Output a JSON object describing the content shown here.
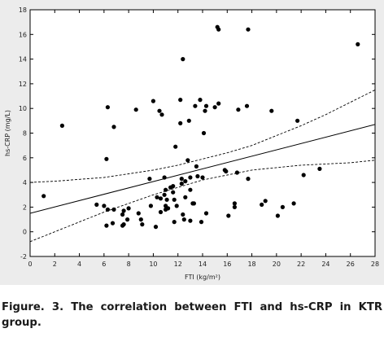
{
  "caption": "Figure. 3. The correlation between FTI  and hs-CRP in KTR group.",
  "chart_data": {
    "type": "scatter",
    "title": "",
    "xlabel": "FTI (kg/m²)",
    "ylabel": "hs-CRP (mg/L)",
    "xlim": [
      0,
      28
    ],
    "ylim": [
      -2,
      18
    ],
    "xticks": [
      0,
      2,
      4,
      6,
      8,
      10,
      12,
      14,
      16,
      18,
      20,
      22,
      24,
      26,
      28
    ],
    "yticks": [
      -2,
      0,
      2,
      4,
      6,
      8,
      10,
      12,
      14,
      16,
      18
    ],
    "grid": false,
    "legend": "none",
    "regression_line": {
      "x": [
        0,
        28
      ],
      "y": [
        1.5,
        8.7
      ]
    },
    "confidence_band": {
      "x": [
        0,
        2,
        4,
        6,
        8,
        10,
        12,
        14,
        16,
        18,
        20,
        22,
        24,
        26,
        28
      ],
      "upper": [
        4.0,
        4.1,
        4.25,
        4.4,
        4.7,
        5.0,
        5.4,
        5.9,
        6.4,
        7.0,
        7.8,
        8.6,
        9.5,
        10.5,
        11.5
      ],
      "lower": [
        -0.8,
        0.0,
        0.8,
        1.6,
        2.3,
        3.0,
        3.6,
        4.2,
        4.6,
        5.0,
        5.2,
        5.4,
        5.5,
        5.6,
        5.8
      ]
    },
    "points": [
      {
        "x": 1.1,
        "y": 2.9
      },
      {
        "x": 2.6,
        "y": 8.6
      },
      {
        "x": 5.4,
        "y": 2.2
      },
      {
        "x": 6.0,
        "y": 2.1
      },
      {
        "x": 6.2,
        "y": 5.9
      },
      {
        "x": 6.3,
        "y": 10.1
      },
      {
        "x": 6.3,
        "y": 1.8
      },
      {
        "x": 6.2,
        "y": 0.5
      },
      {
        "x": 6.8,
        "y": 8.5
      },
      {
        "x": 6.8,
        "y": 1.8
      },
      {
        "x": 6.7,
        "y": 0.7
      },
      {
        "x": 7.6,
        "y": 1.7
      },
      {
        "x": 7.5,
        "y": 1.4
      },
      {
        "x": 7.6,
        "y": 0.6
      },
      {
        "x": 7.5,
        "y": 0.5
      },
      {
        "x": 8.0,
        "y": 1.9
      },
      {
        "x": 7.9,
        "y": 1.0
      },
      {
        "x": 8.6,
        "y": 9.9
      },
      {
        "x": 8.8,
        "y": 1.5
      },
      {
        "x": 9.0,
        "y": 1.0
      },
      {
        "x": 9.1,
        "y": 0.6
      },
      {
        "x": 9.7,
        "y": 4.3
      },
      {
        "x": 9.8,
        "y": 2.1
      },
      {
        "x": 10.0,
        "y": 10.6
      },
      {
        "x": 10.3,
        "y": 2.8
      },
      {
        "x": 10.2,
        "y": 0.4
      },
      {
        "x": 10.5,
        "y": 9.8
      },
      {
        "x": 10.7,
        "y": 9.5
      },
      {
        "x": 10.6,
        "y": 2.7
      },
      {
        "x": 10.6,
        "y": 1.6
      },
      {
        "x": 10.9,
        "y": 4.4
      },
      {
        "x": 11.0,
        "y": 3.4
      },
      {
        "x": 10.9,
        "y": 3.0
      },
      {
        "x": 11.0,
        "y": 2.1
      },
      {
        "x": 11.0,
        "y": 1.8
      },
      {
        "x": 11.1,
        "y": 2.6
      },
      {
        "x": 11.2,
        "y": 1.9
      },
      {
        "x": 11.4,
        "y": 3.6
      },
      {
        "x": 11.6,
        "y": 3.7
      },
      {
        "x": 11.6,
        "y": 3.2
      },
      {
        "x": 11.7,
        "y": 2.6
      },
      {
        "x": 11.7,
        "y": 0.8
      },
      {
        "x": 11.8,
        "y": 6.9
      },
      {
        "x": 11.9,
        "y": 2.1
      },
      {
        "x": 12.2,
        "y": 10.7
      },
      {
        "x": 12.2,
        "y": 8.8
      },
      {
        "x": 12.3,
        "y": 4.3
      },
      {
        "x": 12.3,
        "y": 3.9
      },
      {
        "x": 12.4,
        "y": 14.0
      },
      {
        "x": 12.4,
        "y": 1.4
      },
      {
        "x": 12.5,
        "y": 1.0
      },
      {
        "x": 12.6,
        "y": 2.8
      },
      {
        "x": 12.6,
        "y": 4.1
      },
      {
        "x": 12.8,
        "y": 5.8
      },
      {
        "x": 12.9,
        "y": 9.0
      },
      {
        "x": 13.0,
        "y": 4.4
      },
      {
        "x": 13.0,
        "y": 3.4
      },
      {
        "x": 13.0,
        "y": 0.9
      },
      {
        "x": 13.2,
        "y": 2.3
      },
      {
        "x": 13.3,
        "y": 2.3
      },
      {
        "x": 13.4,
        "y": 10.2
      },
      {
        "x": 13.5,
        "y": 5.3
      },
      {
        "x": 13.6,
        "y": 4.5
      },
      {
        "x": 13.8,
        "y": 10.7
      },
      {
        "x": 13.9,
        "y": 0.8
      },
      {
        "x": 14.0,
        "y": 4.4
      },
      {
        "x": 14.1,
        "y": 8.0
      },
      {
        "x": 14.2,
        "y": 9.8
      },
      {
        "x": 14.3,
        "y": 10.2
      },
      {
        "x": 14.3,
        "y": 1.5
      },
      {
        "x": 15.0,
        "y": 10.1
      },
      {
        "x": 15.2,
        "y": 16.6
      },
      {
        "x": 15.3,
        "y": 16.4
      },
      {
        "x": 15.3,
        "y": 10.4
      },
      {
        "x": 15.8,
        "y": 5.0
      },
      {
        "x": 15.9,
        "y": 4.9
      },
      {
        "x": 16.1,
        "y": 1.3
      },
      {
        "x": 16.6,
        "y": 2.3
      },
      {
        "x": 16.6,
        "y": 2.0
      },
      {
        "x": 16.8,
        "y": 4.8
      },
      {
        "x": 16.9,
        "y": 9.9
      },
      {
        "x": 17.6,
        "y": 10.2
      },
      {
        "x": 17.7,
        "y": 16.4
      },
      {
        "x": 17.7,
        "y": 4.3
      },
      {
        "x": 18.8,
        "y": 2.2
      },
      {
        "x": 19.1,
        "y": 2.5
      },
      {
        "x": 19.6,
        "y": 9.8
      },
      {
        "x": 20.1,
        "y": 1.3
      },
      {
        "x": 20.5,
        "y": 2.0
      },
      {
        "x": 21.4,
        "y": 2.3
      },
      {
        "x": 21.7,
        "y": 9.0
      },
      {
        "x": 22.2,
        "y": 4.6
      },
      {
        "x": 23.5,
        "y": 5.1
      },
      {
        "x": 26.6,
        "y": 15.2
      }
    ]
  }
}
